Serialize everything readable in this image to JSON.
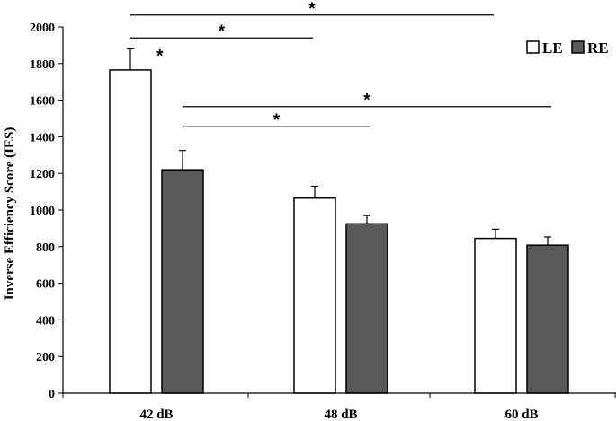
{
  "chart_data": {
    "type": "bar",
    "categories": [
      "42 dB",
      "48 dB",
      "60 dB"
    ],
    "series": [
      {
        "name": "LE",
        "values": [
          1765,
          1065,
          845
        ],
        "errors": [
          115,
          65,
          50
        ],
        "color": "#ffffff"
      },
      {
        "name": "RE",
        "values": [
          1220,
          925,
          808
        ],
        "errors": [
          105,
          45,
          45
        ],
        "color": "#595959"
      }
    ],
    "ylabel": "Inverse Efficiency Score (IES)",
    "ylim": [
      0,
      2000
    ],
    "yticks": [
      "0",
      "200",
      "400",
      "600",
      "800",
      "1000",
      "1200",
      "1400",
      "1600",
      "1800",
      "2000"
    ],
    "grid": false,
    "legend_position": "top-right",
    "significance": [
      {
        "label": "*",
        "series": "LE",
        "from": "42 dB",
        "to": "60 dB",
        "level": 2065
      },
      {
        "label": "*",
        "series": "LE",
        "from": "42 dB",
        "to": "48 dB",
        "level": 1940
      },
      {
        "label": "*",
        "series": "LE",
        "single": "42 dB",
        "level": 1870
      },
      {
        "label": "*",
        "series": "RE",
        "from": "42 dB",
        "to": "60 dB",
        "level": 1565
      },
      {
        "label": "*",
        "series": "RE",
        "from": "42 dB",
        "to": "48 dB",
        "level": 1455
      }
    ]
  }
}
